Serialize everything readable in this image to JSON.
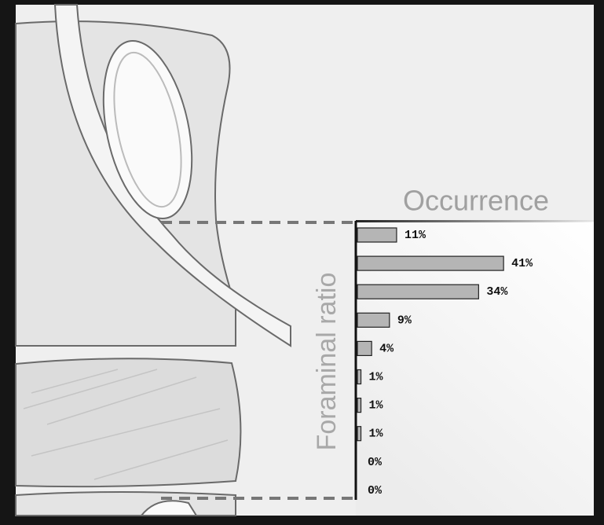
{
  "chart_data": {
    "type": "bar",
    "orientation": "horizontal",
    "title": "Occurrence",
    "ylabel": "Foraminal ratio",
    "categories": [
      null,
      null,
      null,
      null,
      null,
      null,
      null,
      null,
      null,
      null
    ],
    "values": [
      11,
      41,
      34,
      9,
      4,
      1,
      1,
      1,
      0,
      0
    ],
    "value_labels": [
      "11%",
      "41%",
      "34%",
      "9%",
      "4%",
      "1%",
      "1%",
      "1%",
      "0%",
      "0%"
    ],
    "color": "#b5b5b5"
  }
}
